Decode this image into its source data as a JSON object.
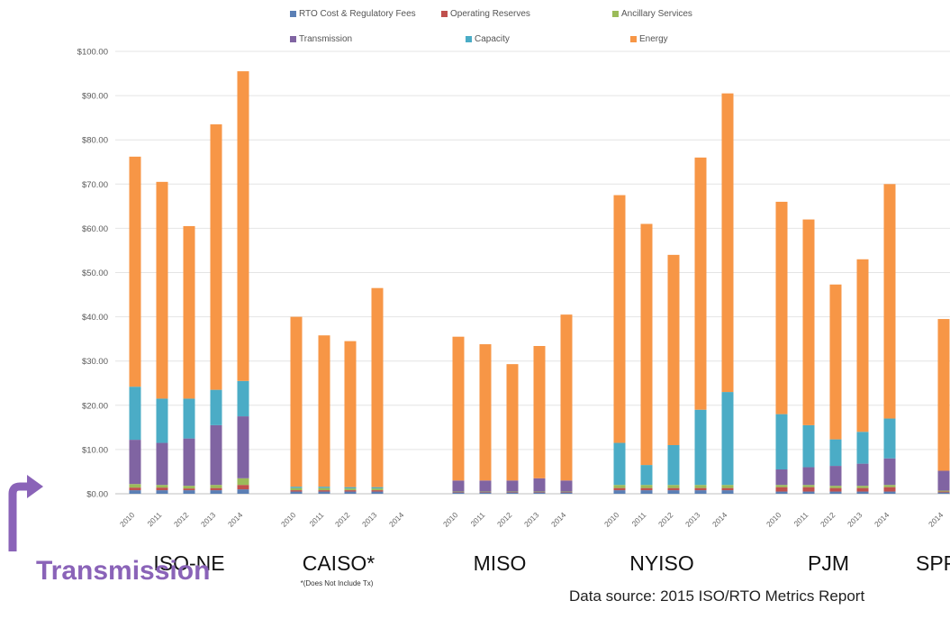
{
  "chart_data": {
    "type": "bar",
    "stacked": true,
    "ylim": [
      0,
      100
    ],
    "yticks": [
      "$0.00",
      "$10.00",
      "$20.00",
      "$30.00",
      "$40.00",
      "$50.00",
      "$60.00",
      "$70.00",
      "$80.00",
      "$90.00",
      "$100.00"
    ],
    "x_ticks": [
      "2010",
      "2011",
      "2012",
      "2013",
      "2014"
    ],
    "grid": true,
    "legend_position": "top",
    "series": [
      {
        "name": "RTO Cost & Regulatory Fees",
        "color": "#5b7fb5"
      },
      {
        "name": "Operating Reserves",
        "color": "#c0504d"
      },
      {
        "name": "Ancillary Services",
        "color": "#9bbb59"
      },
      {
        "name": "Transmission",
        "color": "#8064a2"
      },
      {
        "name": "Capacity",
        "color": "#4bacc6"
      },
      {
        "name": "Energy",
        "color": "#f79646"
      }
    ],
    "groups": [
      {
        "name": "ISO-NE",
        "note": "",
        "bars": [
          {
            "year": "2010",
            "values": [
              0.8,
              0.6,
              0.8,
              10,
              12,
              52
            ]
          },
          {
            "year": "2011",
            "values": [
              0.8,
              0.6,
              0.6,
              9.5,
              10,
              49
            ]
          },
          {
            "year": "2012",
            "values": [
              0.8,
              0.4,
              0.6,
              10.7,
              9,
              39
            ]
          },
          {
            "year": "2013",
            "values": [
              0.8,
              0.5,
              0.7,
              13.5,
              8,
              60
            ]
          },
          {
            "year": "2014",
            "values": [
              1,
              1,
              1.5,
              14,
              8,
              70
            ]
          }
        ]
      },
      {
        "name": "CAISO*",
        "note": "*(Does Not Include Tx)",
        "bars": [
          {
            "year": "2010",
            "values": [
              0.5,
              0.3,
              0.5,
              0,
              0.3,
              38.4
            ]
          },
          {
            "year": "2011",
            "values": [
              0.5,
              0.3,
              0.5,
              0,
              0.3,
              34.2
            ]
          },
          {
            "year": "2012",
            "values": [
              0.5,
              0.3,
              0.4,
              0,
              0.3,
              33
            ]
          },
          {
            "year": "2013",
            "values": [
              0.5,
              0.3,
              0.4,
              0,
              0.3,
              45
            ]
          },
          {
            "year": "2014",
            "values": null
          }
        ]
      },
      {
        "name": "MISO",
        "note": "",
        "bars": [
          {
            "year": "2010",
            "values": [
              0.3,
              0.1,
              0.1,
              2.5,
              0,
              32.5
            ]
          },
          {
            "year": "2011",
            "values": [
              0.3,
              0.1,
              0.1,
              2.5,
              0,
              30.8
            ]
          },
          {
            "year": "2012",
            "values": [
              0.3,
              0.1,
              0.1,
              2.5,
              0,
              26.3
            ]
          },
          {
            "year": "2013",
            "values": [
              0.3,
              0.1,
              0.1,
              3,
              0,
              29.9
            ]
          },
          {
            "year": "2014",
            "values": [
              0.3,
              0.1,
              0.1,
              2.5,
              0,
              37.5
            ]
          }
        ]
      },
      {
        "name": "NYISO",
        "note": "",
        "bars": [
          {
            "year": "2010",
            "values": [
              0.8,
              0.5,
              0.7,
              0,
              9.5,
              56
            ]
          },
          {
            "year": "2011",
            "values": [
              0.8,
              0.5,
              0.7,
              0,
              4.5,
              54.5
            ]
          },
          {
            "year": "2012",
            "values": [
              0.8,
              0.5,
              0.7,
              0,
              9,
              43
            ]
          },
          {
            "year": "2013",
            "values": [
              0.8,
              0.5,
              0.7,
              0,
              17,
              57
            ]
          },
          {
            "year": "2014",
            "values": [
              0.8,
              0.5,
              0.7,
              0,
              21,
              67.5
            ]
          }
        ]
      },
      {
        "name": "PJM",
        "note": "",
        "bars": [
          {
            "year": "2010",
            "values": [
              0.5,
              1,
              0.5,
              3.5,
              12.5,
              48
            ]
          },
          {
            "year": "2011",
            "values": [
              0.5,
              1,
              0.5,
              4,
              9.5,
              46.5
            ]
          },
          {
            "year": "2012",
            "values": [
              0.5,
              0.8,
              0.5,
              4.5,
              6,
              35
            ]
          },
          {
            "year": "2013",
            "values": [
              0.5,
              0.8,
              0.5,
              5,
              7.2,
              39
            ]
          },
          {
            "year": "2014",
            "values": [
              0.5,
              1,
              0.5,
              6,
              9,
              53
            ]
          }
        ]
      },
      {
        "name": "SPP",
        "note": "",
        "bars": [
          {
            "year": "2014",
            "values": [
              0.3,
              0.2,
              0.2,
              4.5,
              0,
              34.3
            ]
          }
        ]
      }
    ]
  },
  "footer": {
    "callout": "Transmission",
    "source": "Data source: 2015 ISO/RTO Metrics Report"
  }
}
